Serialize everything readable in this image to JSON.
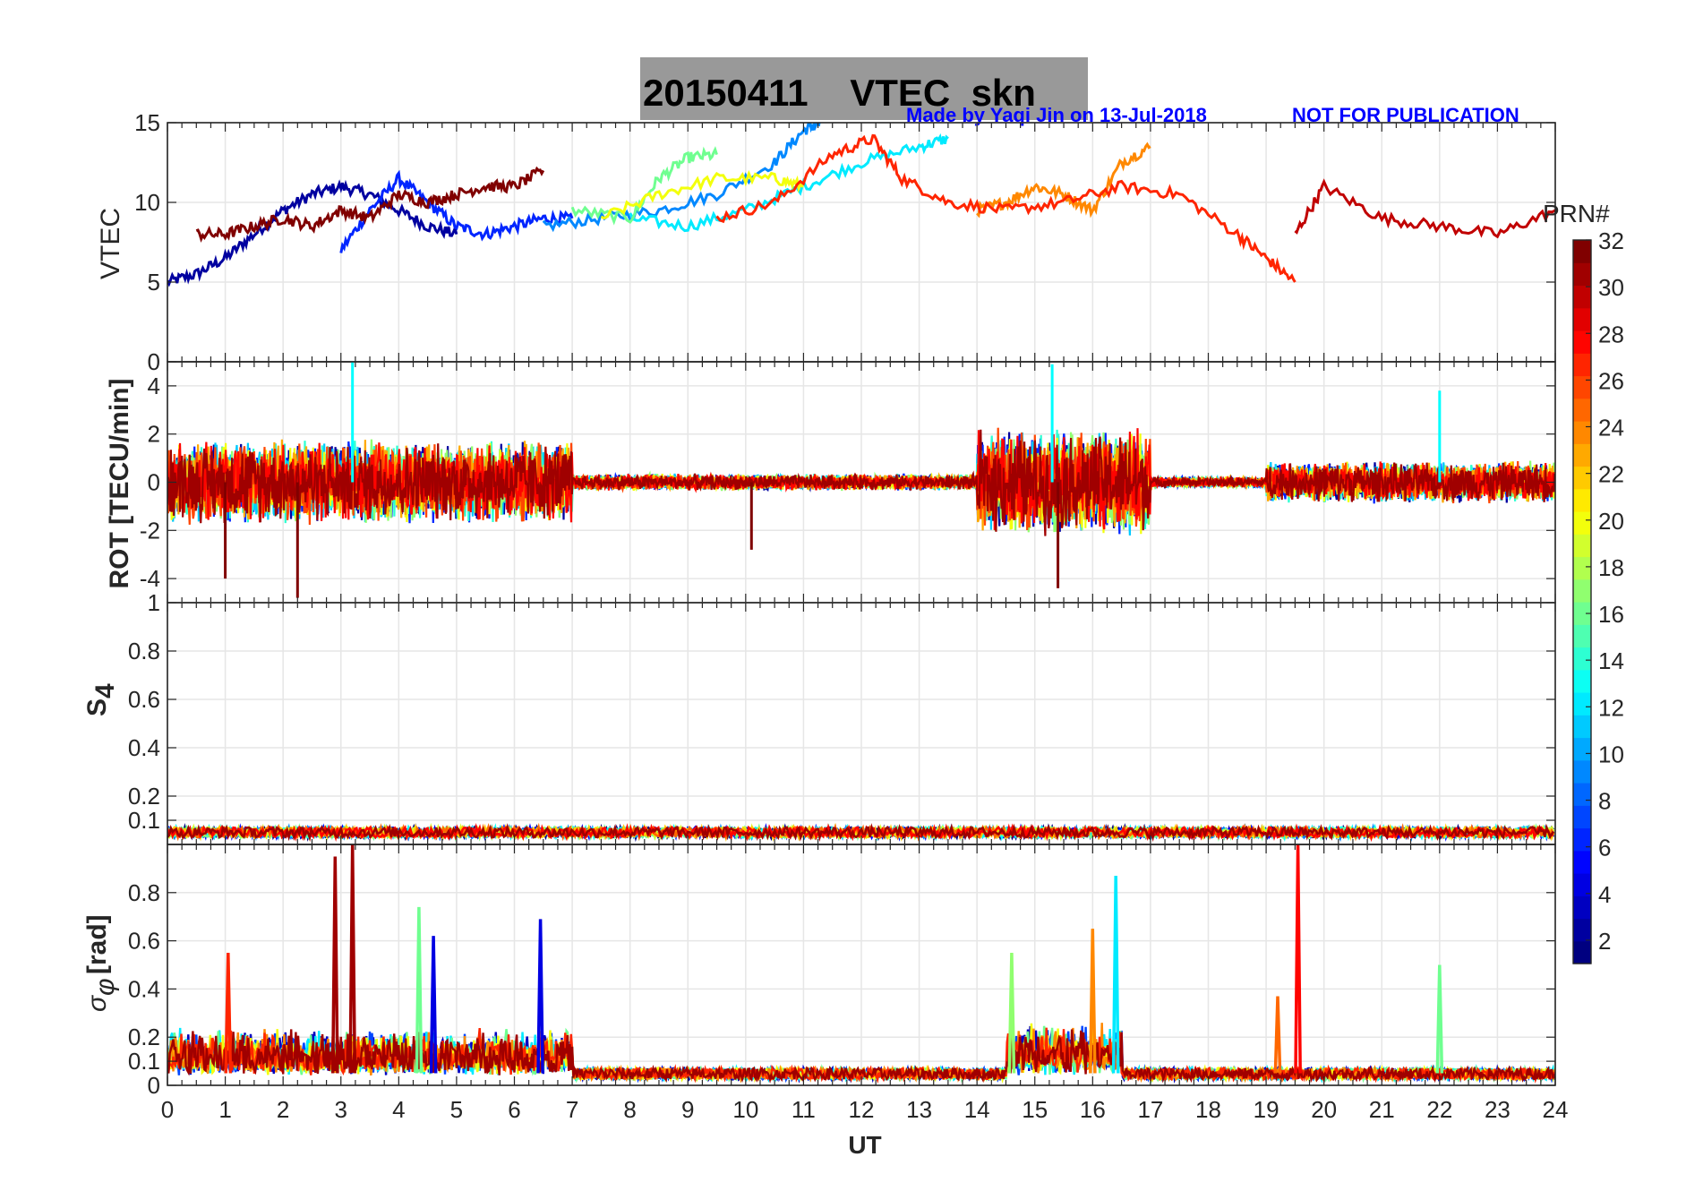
{
  "chart_data": [
    {
      "type": "line",
      "panel": "vtec",
      "ylabel": "VTEC",
      "ylim": [
        0,
        15
      ],
      "yticks": [
        0,
        5,
        10,
        15
      ],
      "xlim": [
        0,
        24
      ],
      "description_series": "many PRN-coloured VTEC tracks",
      "series": [
        {
          "prn": 2,
          "x": [
            0.0,
            0.5,
            1.0,
            1.5,
            2.0,
            2.5,
            3.0,
            3.5,
            4.0,
            4.5,
            5.0
          ],
          "y": [
            5.0,
            5.5,
            6.5,
            8.0,
            9.5,
            10.5,
            11.0,
            10.5,
            9.5,
            8.5,
            8.0
          ]
        },
        {
          "prn": 6,
          "x": [
            3.0,
            3.5,
            4.0,
            4.5,
            5.0,
            5.5,
            6.0,
            6.5,
            7.0
          ],
          "y": [
            7.0,
            9.5,
            11.5,
            10.0,
            8.5,
            8.0,
            8.5,
            9.0,
            9.0
          ]
        },
        {
          "prn": 9,
          "x": [
            6.5,
            7.5,
            8.5,
            9.5,
            10.5,
            11.0,
            11.3
          ],
          "y": [
            8.5,
            9.0,
            9.5,
            10.5,
            12.5,
            14.5,
            15.0
          ]
        },
        {
          "prn": 12,
          "x": [
            8.0,
            9.0,
            10.0,
            11.0,
            12.0,
            13.0,
            13.5
          ],
          "y": [
            9.0,
            8.5,
            9.5,
            11.0,
            12.5,
            13.5,
            14.0
          ]
        },
        {
          "prn": 16,
          "x": [
            7.0,
            8.0,
            8.5,
            9.0,
            9.5
          ],
          "y": [
            9.5,
            9.0,
            11.5,
            12.8,
            13.0
          ]
        },
        {
          "prn": 20,
          "x": [
            7.5,
            8.5,
            9.5,
            10.5,
            11.0
          ],
          "y": [
            9.0,
            10.5,
            11.5,
            11.5,
            11.0
          ]
        },
        {
          "prn": 24,
          "x": [
            14.0,
            14.5,
            15.0,
            15.5,
            16.0,
            16.5,
            17.0
          ],
          "y": [
            9.5,
            10.0,
            11.0,
            10.5,
            9.5,
            12.5,
            13.5
          ]
        },
        {
          "prn": 27,
          "x": [
            9.5,
            10.5,
            11.5,
            12.2,
            12.7,
            13.5,
            14.5,
            15.5,
            16.5,
            17.5,
            18.5,
            19.0,
            19.5
          ],
          "y": [
            9.0,
            10.0,
            13.0,
            14.0,
            11.5,
            10.0,
            9.5,
            10.0,
            11.0,
            10.5,
            8.0,
            6.5,
            5.0
          ]
        },
        {
          "prn": 30,
          "x": [
            19.5,
            20.0,
            21.0,
            22.0,
            23.0,
            24.0
          ],
          "y": [
            8.0,
            11.0,
            9.0,
            8.5,
            8.0,
            9.5
          ]
        },
        {
          "prn": 32,
          "x": [
            0.5,
            1.0,
            1.5,
            2.0,
            2.5,
            3.0,
            3.5,
            4.0,
            4.5,
            5.0,
            5.5,
            6.0,
            6.5
          ],
          "y": [
            8.0,
            8.0,
            8.5,
            9.0,
            8.5,
            9.5,
            9.0,
            10.5,
            10.0,
            10.5,
            11.0,
            11.0,
            12.0
          ]
        }
      ]
    },
    {
      "type": "line",
      "panel": "rot",
      "ylabel": "ROT [TECU/min]",
      "ylim": [
        -5,
        5
      ],
      "yticks": [
        -4,
        -2,
        0,
        2,
        4
      ],
      "xlim": [
        0,
        24
      ],
      "activity_windows": [
        {
          "from": 0.0,
          "to": 7.0,
          "amplitude": 3.0
        },
        {
          "from": 7.0,
          "to": 14.0,
          "amplitude": 0.6
        },
        {
          "from": 14.0,
          "to": 17.0,
          "amplitude": 3.8
        },
        {
          "from": 17.0,
          "to": 19.0,
          "amplitude": 0.4
        },
        {
          "from": 19.0,
          "to": 24.0,
          "amplitude": 1.5
        }
      ],
      "spikes": [
        {
          "x": 3.2,
          "y": 5.0
        },
        {
          "x": 2.25,
          "y": -4.8
        },
        {
          "x": 15.3,
          "y": 4.9
        },
        {
          "x": 15.4,
          "y": -4.4
        },
        {
          "x": 22.0,
          "y": 3.8
        },
        {
          "x": 1.0,
          "y": -4.0
        },
        {
          "x": 10.1,
          "y": -2.8
        }
      ]
    },
    {
      "type": "line",
      "panel": "s4",
      "ylabel": "S4",
      "ylim": [
        0,
        1
      ],
      "yticks": [
        0.1,
        0.2,
        0.4,
        0.6,
        0.8,
        1
      ],
      "xlim": [
        0,
        24
      ],
      "baseline": 0.05,
      "noise": 0.03
    },
    {
      "type": "line",
      "panel": "sigma_phi",
      "ylabel": "σφ [rad]",
      "ylim": [
        0,
        1
      ],
      "yticks": [
        0,
        0.1,
        0.2,
        0.4,
        0.6,
        0.8
      ],
      "xlim": [
        0,
        24
      ],
      "spikes": [
        {
          "x": 2.9,
          "y": 0.95,
          "prn": 31
        },
        {
          "x": 3.2,
          "y": 1.0,
          "prn": 31
        },
        {
          "x": 4.35,
          "y": 0.74,
          "prn": 16
        },
        {
          "x": 4.6,
          "y": 0.62,
          "prn": 4
        },
        {
          "x": 6.45,
          "y": 0.69,
          "prn": 4
        },
        {
          "x": 1.05,
          "y": 0.55,
          "prn": 27
        },
        {
          "x": 16.0,
          "y": 0.65,
          "prn": 24
        },
        {
          "x": 16.4,
          "y": 0.87,
          "prn": 12
        },
        {
          "x": 19.55,
          "y": 1.0,
          "prn": 28
        },
        {
          "x": 19.2,
          "y": 0.37,
          "prn": 25
        },
        {
          "x": 22.0,
          "y": 0.5,
          "prn": 16
        },
        {
          "x": 14.6,
          "y": 0.55,
          "prn": 17
        }
      ]
    }
  ],
  "header": {
    "title": "20150411    VTEC  skn",
    "credit": "Made by Yaqi Jin on 13-Jul-2018",
    "warning": "NOT FOR PUBLICATION"
  },
  "xaxis": {
    "label": "UT",
    "ticks": [
      "0",
      "1",
      "2",
      "3",
      "4",
      "5",
      "6",
      "7",
      "8",
      "9",
      "10",
      "11",
      "12",
      "13",
      "14",
      "15",
      "16",
      "17",
      "18",
      "19",
      "20",
      "21",
      "22",
      "23",
      "24"
    ]
  },
  "colorbar": {
    "title": "PRN#",
    "range": [
      1,
      32
    ],
    "ticks": [
      "2",
      "4",
      "6",
      "8",
      "10",
      "12",
      "14",
      "16",
      "18",
      "20",
      "22",
      "24",
      "26",
      "28",
      "30",
      "32"
    ]
  },
  "s4_label": {
    "main": "S",
    "sub": "4"
  },
  "sigma_label": {
    "main": "σ",
    "sub": "φ",
    "unit": "[rad]"
  },
  "colors": {
    "title_box": "#999999",
    "credit": "#0000ff",
    "axis": "#262626"
  }
}
